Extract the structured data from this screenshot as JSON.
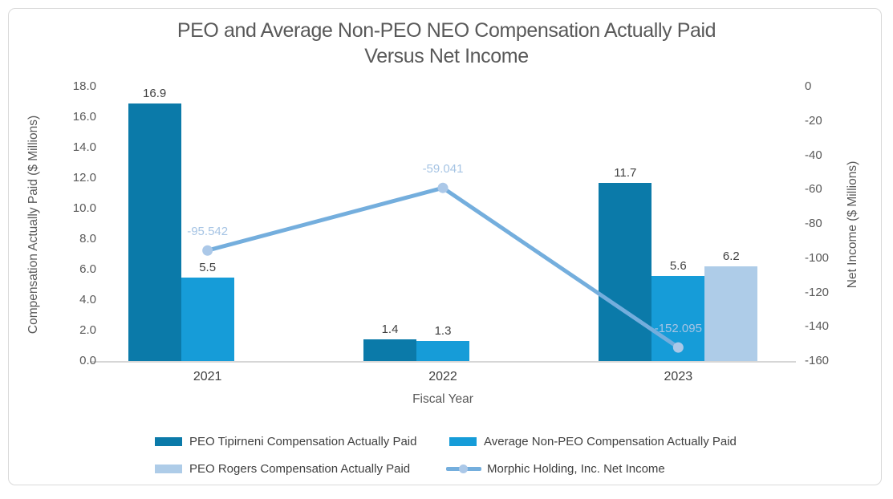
{
  "chart_data": {
    "type": "combo-bar-line",
    "title_lines": [
      "PEO and Average Non-PEO NEO Compensation Actually Paid",
      "Versus Net Income"
    ],
    "categories": [
      "2021",
      "2022",
      "2023"
    ],
    "bar_series": [
      {
        "name": "PEO Tipirneni Compensation Actually Paid",
        "color": "#0b7aa9",
        "values": [
          16.9,
          1.4,
          11.7
        ],
        "labels": [
          "16.9",
          "1.4",
          "11.7"
        ]
      },
      {
        "name": "Average Non-PEO Compensation Actually Paid",
        "color": "#169cd8",
        "values": [
          5.5,
          1.3,
          5.6
        ],
        "labels": [
          "5.5",
          "1.3",
          "5.6"
        ]
      },
      {
        "name": "PEO Rogers Compensation Actually Paid",
        "color": "#aecce8",
        "values": [
          null,
          null,
          6.2
        ],
        "labels": [
          null,
          null,
          "6.2"
        ]
      }
    ],
    "line_series": {
      "name": "Morphic Holding, Inc. Net Income",
      "color": "#74aedd",
      "marker_color": "#abc8e8",
      "label_color": "#a6c4e4",
      "values": [
        -95.542,
        -59.041,
        -152.095
      ],
      "labels": [
        "-95.542",
        "-59.041",
        "-152.095"
      ]
    },
    "left_axis": {
      "title": "Compensation Actually Paid ($ Millions)",
      "min": 0,
      "max": 18,
      "step": 2,
      "tick_labels": [
        "0.0",
        "2.0",
        "4.0",
        "6.0",
        "8.0",
        "10.0",
        "12.0",
        "14.0",
        "16.0",
        "18.0"
      ]
    },
    "right_axis": {
      "title": "Net Income ($ Millions)",
      "min": -160,
      "max": 0,
      "step": 20,
      "tick_labels": [
        "0",
        "-20",
        "-40",
        "-60",
        "-80",
        "-100",
        "-120",
        "-140",
        "-160"
      ]
    },
    "x_axis": {
      "title": "Fiscal Year"
    },
    "layout_hints": {
      "grid": "baseline-only",
      "legend_position": "bottom",
      "legend_rows": 2
    }
  }
}
